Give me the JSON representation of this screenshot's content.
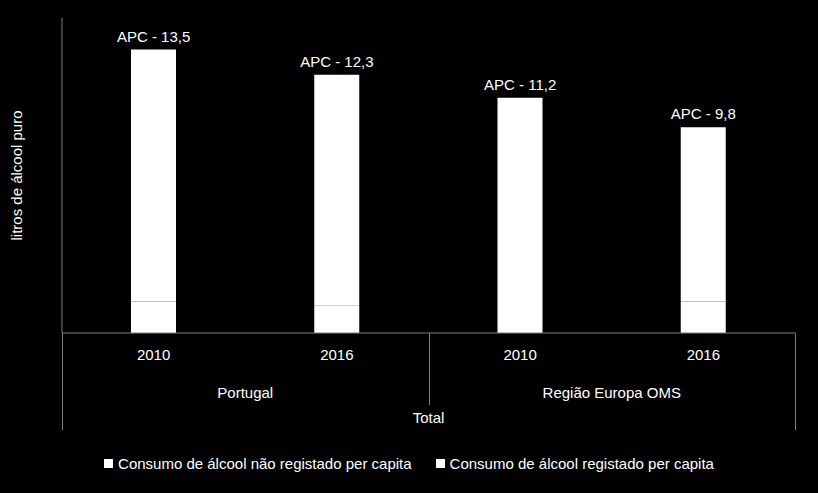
{
  "chart_data": {
    "type": "bar",
    "stacked": true,
    "y_label": "litros de álcool puro",
    "x_label": "Total",
    "categories": [
      "2010",
      "2016",
      "2010",
      "2016"
    ],
    "category_groups": [
      "Portugal",
      "Portugal",
      "Região Europa OMS",
      "Região Europa OMS"
    ],
    "series": [
      {
        "name": "Consumo de álcool não registado per capita",
        "color": "#ffffff",
        "values": [
          1.5,
          1.3,
          1.9,
          1.5
        ]
      },
      {
        "name": "Consumo de álcool registado per capita",
        "color": "#ffffff",
        "values": [
          12.0,
          11.0,
          9.3,
          8.3
        ]
      }
    ],
    "totals": [
      13.5,
      12.3,
      11.2,
      9.8
    ],
    "total_labels": [
      "APC - 13,5",
      "APC - 12,3",
      "APC - 11,2",
      "APC - 9,8"
    ],
    "ylim": [
      0,
      15
    ],
    "tick_labels": "x",
    "grid": false,
    "legend": "bottom"
  }
}
